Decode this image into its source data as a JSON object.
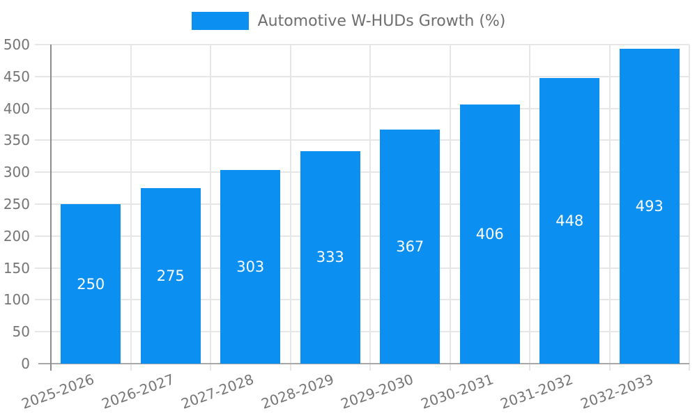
{
  "legend": {
    "label": "Automotive W-HUDs Growth (%)"
  },
  "colors": {
    "bar": "#0b90f2",
    "grid": "#e6e6e6",
    "axis_y": "#8c8c8c",
    "axis_x": "#a8a8a8",
    "tick_text": "#757575",
    "legend_text": "#6e6e6e",
    "bar_label_text": "#ffffff",
    "background": "#ffffff"
  },
  "chart_data": {
    "type": "bar",
    "title": "Automotive W-HUDs Growth (%)",
    "categories": [
      "2025-2026",
      "2026-2027",
      "2027-2028",
      "2028-2029",
      "2029-2030",
      "2030-2031",
      "2031-2032",
      "2032-2033"
    ],
    "values": [
      250,
      275,
      303,
      333,
      367,
      406,
      448,
      493
    ],
    "xlabel": "",
    "ylabel": "",
    "ylim": [
      0,
      500
    ],
    "ytick_step": 50,
    "yticks": [
      0,
      50,
      100,
      150,
      200,
      250,
      300,
      350,
      400,
      450,
      500
    ],
    "grid": true,
    "legend_position": "top-center",
    "bar_value_labels_shown": true,
    "xtick_rotation_deg": -20
  }
}
